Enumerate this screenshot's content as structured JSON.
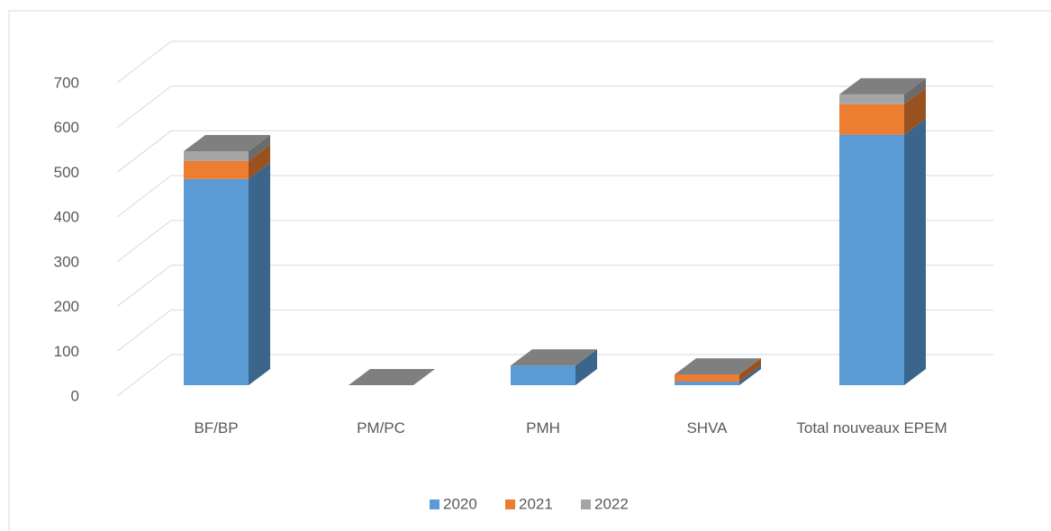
{
  "chart_data": {
    "type": "bar3d_stacked",
    "categories": [
      "BF/BP",
      "PM/PC",
      "PMH",
      "SHVA",
      "Total nouveaux EPEM"
    ],
    "series": [
      {
        "name": "2020",
        "color": "#5b9bd5",
        "values": [
          461,
          0,
          44,
          8,
          560
        ]
      },
      {
        "name": "2021",
        "color": "#ed7d31",
        "values": [
          40,
          0,
          0,
          16,
          68
        ]
      },
      {
        "name": "2022",
        "color": "#a5a5a5",
        "values": [
          22,
          0,
          0,
          0,
          22
        ]
      }
    ],
    "ylim": [
      0,
      700
    ],
    "yticks": [
      0,
      100,
      200,
      300,
      400,
      500,
      600,
      700
    ],
    "grid": true
  }
}
